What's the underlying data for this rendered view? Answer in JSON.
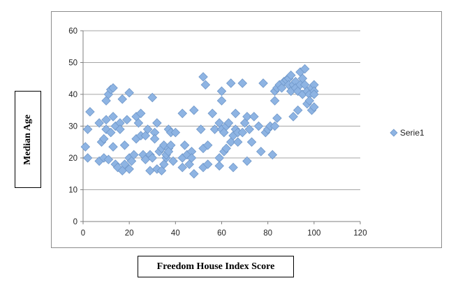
{
  "chart_data": {
    "type": "scatter",
    "xlabel": "Freedom House Index Score",
    "ylabel": "Median Age",
    "xlim": [
      0,
      120
    ],
    "ylim": [
      0,
      60
    ],
    "xticks": [
      0,
      20,
      40,
      60,
      80,
      100,
      120
    ],
    "yticks": [
      0,
      10,
      20,
      30,
      40,
      50,
      60
    ],
    "grid": "horizontal",
    "legend_position": "right",
    "series": [
      {
        "name": "Serie1",
        "color": "#8eb4e3",
        "points": [
          [
            1,
            23.5
          ],
          [
            2,
            29
          ],
          [
            2,
            20
          ],
          [
            3,
            34.5
          ],
          [
            7,
            19
          ],
          [
            7,
            31
          ],
          [
            8,
            25
          ],
          [
            9,
            26
          ],
          [
            9,
            20
          ],
          [
            10,
            32
          ],
          [
            10,
            38
          ],
          [
            10,
            29
          ],
          [
            11,
            40
          ],
          [
            11,
            19.5
          ],
          [
            12,
            41.5
          ],
          [
            12,
            28
          ],
          [
            13,
            33
          ],
          [
            13,
            42
          ],
          [
            13,
            23.5
          ],
          [
            14,
            30
          ],
          [
            14,
            18
          ],
          [
            15,
            17
          ],
          [
            16,
            31
          ],
          [
            16,
            29
          ],
          [
            17,
            38.5
          ],
          [
            17,
            16
          ],
          [
            18,
            24
          ],
          [
            18,
            18
          ],
          [
            19,
            32
          ],
          [
            20,
            40.5
          ],
          [
            20,
            16.5
          ],
          [
            20,
            20
          ],
          [
            21,
            19
          ],
          [
            22,
            21
          ],
          [
            23,
            26
          ],
          [
            23,
            33
          ],
          [
            24,
            31
          ],
          [
            25,
            34
          ],
          [
            25,
            27
          ],
          [
            26,
            21
          ],
          [
            27,
            19.5
          ],
          [
            27,
            27
          ],
          [
            28,
            29
          ],
          [
            29,
            21
          ],
          [
            29,
            16
          ],
          [
            30,
            39
          ],
          [
            30,
            20
          ],
          [
            31,
            28
          ],
          [
            31,
            26
          ],
          [
            32,
            31
          ],
          [
            32,
            16.5
          ],
          [
            33,
            22
          ],
          [
            34,
            23
          ],
          [
            34,
            16
          ],
          [
            35,
            18
          ],
          [
            35,
            24
          ],
          [
            36,
            20
          ],
          [
            36,
            21
          ],
          [
            37,
            23
          ],
          [
            37,
            29
          ],
          [
            37,
            22
          ],
          [
            38,
            24
          ],
          [
            38,
            28
          ],
          [
            39,
            19
          ],
          [
            40,
            28
          ],
          [
            43,
            34
          ],
          [
            43,
            20
          ],
          [
            43,
            17
          ],
          [
            44,
            24
          ],
          [
            45,
            21
          ],
          [
            46,
            18
          ],
          [
            47,
            22
          ],
          [
            47,
            20
          ],
          [
            48,
            35
          ],
          [
            48,
            15
          ],
          [
            51,
            29
          ],
          [
            52,
            45.5
          ],
          [
            52,
            23
          ],
          [
            52,
            17
          ],
          [
            53,
            43
          ],
          [
            54,
            24
          ],
          [
            54,
            18
          ],
          [
            56,
            34
          ],
          [
            57,
            29
          ],
          [
            59,
            31
          ],
          [
            59,
            20
          ],
          [
            59,
            17.5
          ],
          [
            60,
            41
          ],
          [
            60,
            38
          ],
          [
            60,
            29
          ],
          [
            61,
            28
          ],
          [
            61,
            22
          ],
          [
            62,
            23
          ],
          [
            62,
            30
          ],
          [
            63,
            31
          ],
          [
            64,
            43.5
          ],
          [
            64,
            25
          ],
          [
            65,
            27
          ],
          [
            65,
            17
          ],
          [
            66,
            29
          ],
          [
            66,
            34
          ],
          [
            67,
            28
          ],
          [
            67,
            25
          ],
          [
            69,
            43.5
          ],
          [
            69,
            28
          ],
          [
            70,
            31
          ],
          [
            71,
            33
          ],
          [
            71,
            19
          ],
          [
            72,
            29
          ],
          [
            73,
            25
          ],
          [
            74,
            33
          ],
          [
            76,
            30
          ],
          [
            77,
            22
          ],
          [
            78,
            43.5
          ],
          [
            79,
            28
          ],
          [
            80,
            29
          ],
          [
            81,
            30
          ],
          [
            82,
            21
          ],
          [
            83,
            41
          ],
          [
            83,
            38
          ],
          [
            83,
            30
          ],
          [
            84,
            32.5
          ],
          [
            84,
            42
          ],
          [
            85,
            43
          ],
          [
            86,
            42
          ],
          [
            87,
            44
          ],
          [
            88,
            44.5
          ],
          [
            89,
            45
          ],
          [
            89,
            43
          ],
          [
            90,
            46
          ],
          [
            90,
            41
          ],
          [
            91,
            43
          ],
          [
            91,
            33
          ],
          [
            92,
            44
          ],
          [
            92,
            42
          ],
          [
            93,
            35
          ],
          [
            93,
            41
          ],
          [
            94,
            47
          ],
          [
            94,
            43
          ],
          [
            95,
            45
          ],
          [
            95,
            40
          ],
          [
            96,
            48
          ],
          [
            96,
            43
          ],
          [
            97,
            41
          ],
          [
            97,
            37
          ],
          [
            98,
            40
          ],
          [
            98,
            38
          ],
          [
            99,
            42
          ],
          [
            99,
            35
          ],
          [
            100,
            43
          ],
          [
            100,
            41
          ],
          [
            100,
            40
          ],
          [
            100,
            36
          ]
        ]
      }
    ]
  }
}
